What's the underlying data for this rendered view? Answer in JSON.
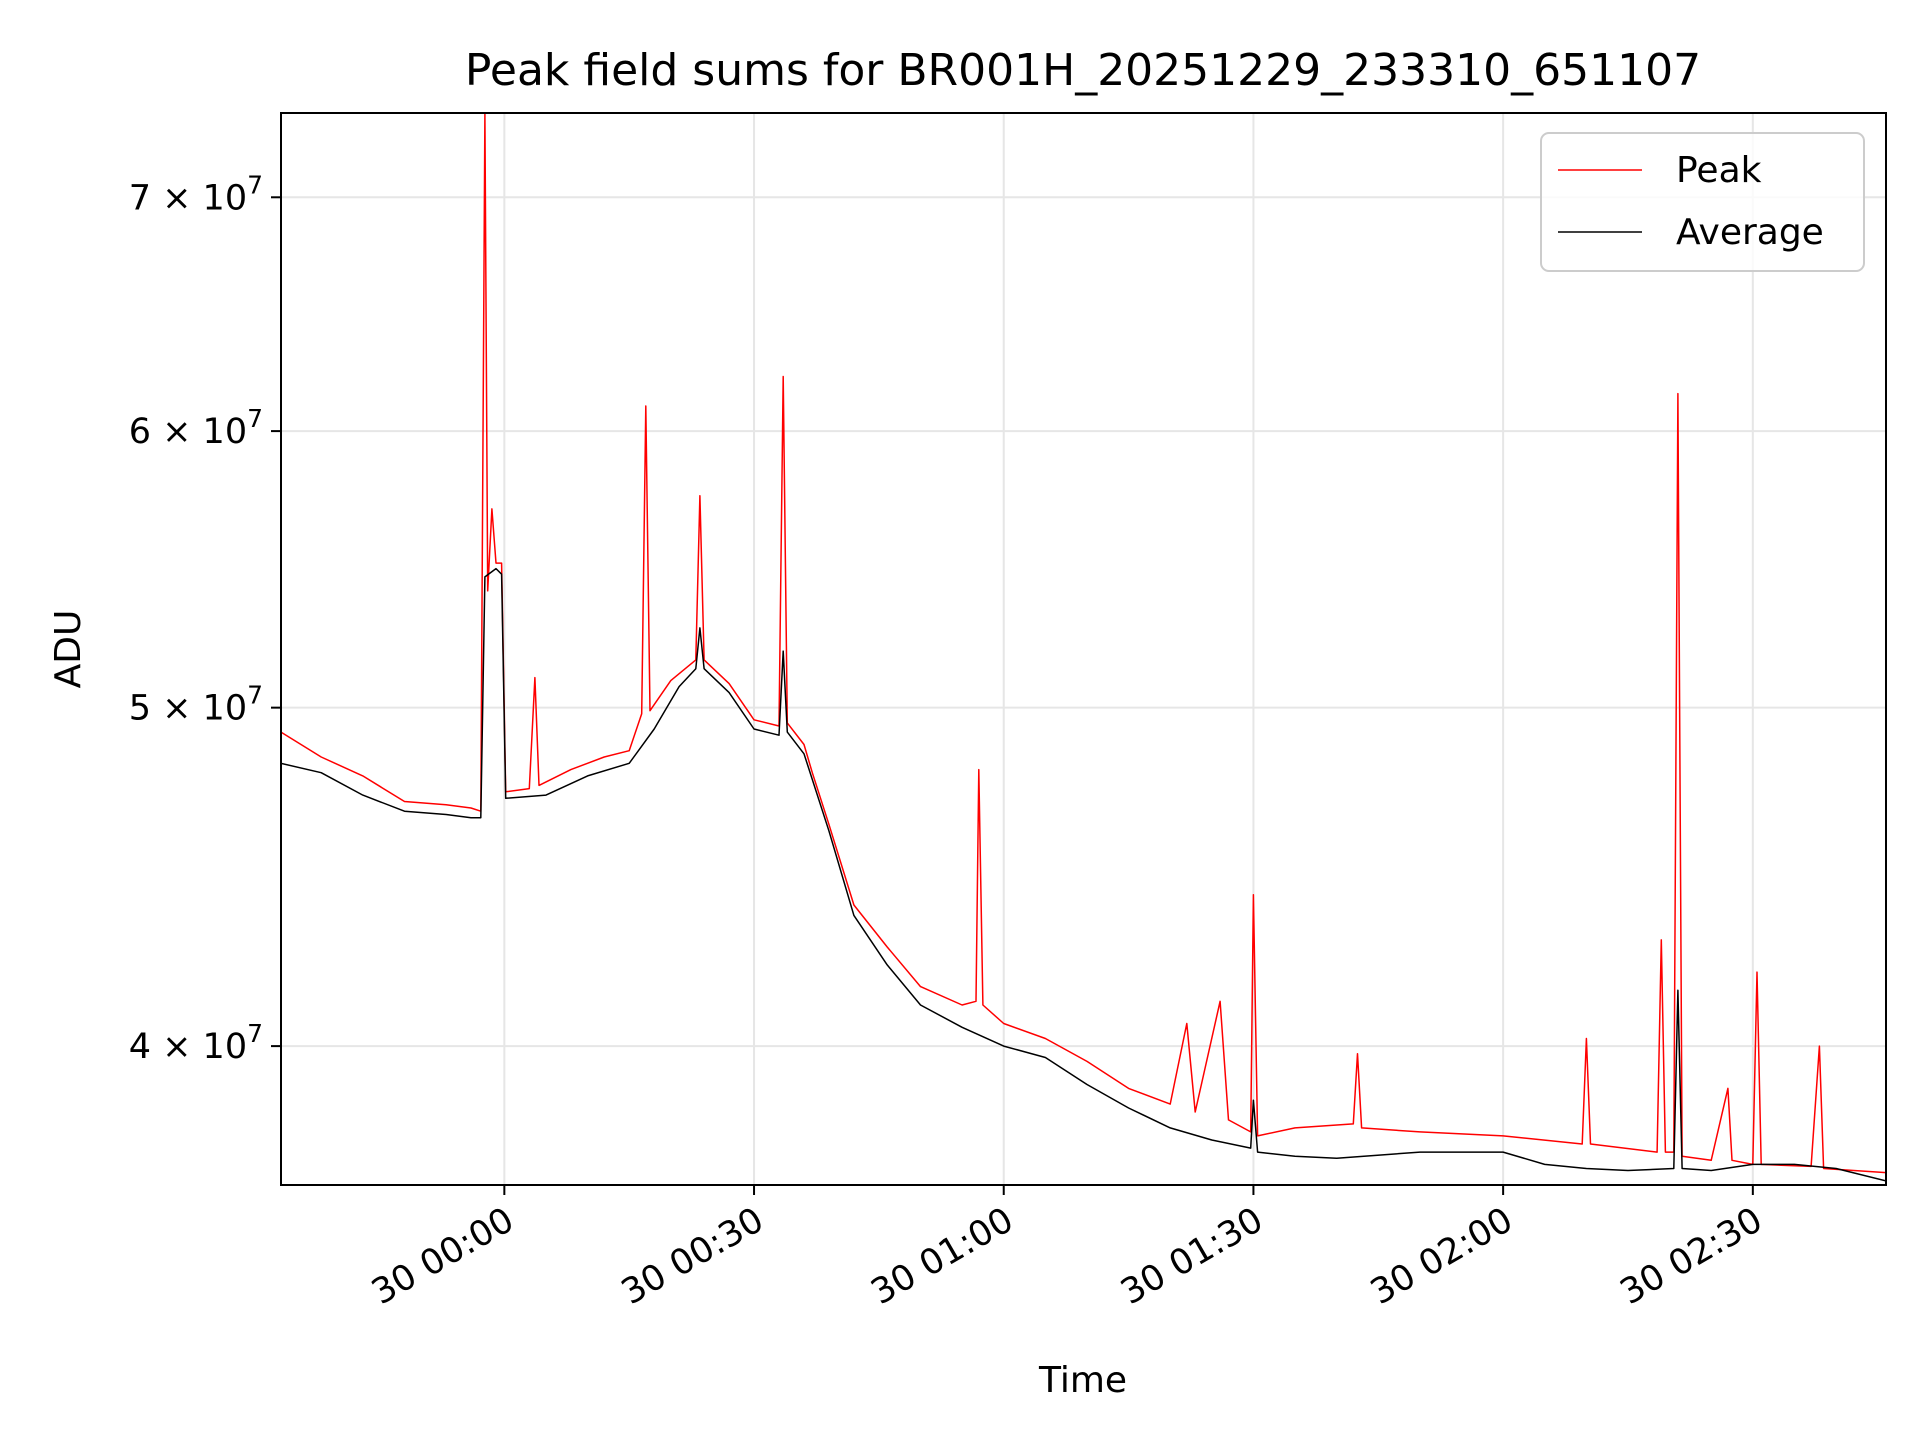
{
  "chart_data": {
    "type": "line",
    "title": "Peak field sums for BR001H_20251229_233310_651107",
    "xlabel": "Time",
    "ylabel": "ADU",
    "x_range": [
      "2025-12-29T23:33:10",
      "2025-12-30T02:46:00"
    ],
    "ylim": [
      36500000,
      74000000
    ],
    "y_scale": "log",
    "grid": true,
    "legend_position": "top-right",
    "x_ticks": [
      {
        "t": "2025-12-30T00:00:00",
        "label": "30 00:00"
      },
      {
        "t": "2025-12-30T00:30:00",
        "label": "30 00:30"
      },
      {
        "t": "2025-12-30T01:00:00",
        "label": "30 01:00"
      },
      {
        "t": "2025-12-30T01:30:00",
        "label": "30 01:30"
      },
      {
        "t": "2025-12-30T02:00:00",
        "label": "30 02:00"
      },
      {
        "t": "2025-12-30T02:30:00",
        "label": "30 02:30"
      }
    ],
    "y_ticks": [
      {
        "value": 40000000,
        "mantissa": "4",
        "exponent": "7"
      },
      {
        "value": 50000000,
        "mantissa": "5",
        "exponent": "7"
      },
      {
        "value": 60000000,
        "mantissa": "6",
        "exponent": "7"
      },
      {
        "value": 70000000,
        "mantissa": "7",
        "exponent": "7"
      }
    ],
    "tick_times_symbol": "×",
    "tick_base": "10",
    "series": [
      {
        "name": "Peak",
        "color": "#ff0000",
        "points": [
          [
            "2025-12-29T23:33:10",
            49200000
          ],
          [
            "2025-12-29T23:38:00",
            48400000
          ],
          [
            "2025-12-29T23:43:00",
            47800000
          ],
          [
            "2025-12-29T23:48:00",
            47000000
          ],
          [
            "2025-12-29T23:53:00",
            46900000
          ],
          [
            "2025-12-29T23:56:00",
            46800000
          ],
          [
            "2025-12-29T23:57:10",
            46700000
          ],
          [
            "2025-12-29T23:57:40",
            74000000
          ],
          [
            "2025-12-29T23:58:00",
            54000000
          ],
          [
            "2025-12-29T23:58:30",
            57000000
          ],
          [
            "2025-12-29T23:59:00",
            55000000
          ],
          [
            "2025-12-29T23:59:40",
            55000000
          ],
          [
            "2025-12-30T00:00:10",
            47300000
          ],
          [
            "2025-12-30T00:03:00",
            47400000
          ],
          [
            "2025-12-30T00:03:40",
            51000000
          ],
          [
            "2025-12-30T00:04:10",
            47500000
          ],
          [
            "2025-12-30T00:08:00",
            48000000
          ],
          [
            "2025-12-30T00:12:00",
            48400000
          ],
          [
            "2025-12-30T00:15:00",
            48600000
          ],
          [
            "2025-12-30T00:16:30",
            49800000
          ],
          [
            "2025-12-30T00:17:00",
            61000000
          ],
          [
            "2025-12-30T00:17:30",
            49900000
          ],
          [
            "2025-12-30T00:20:00",
            50900000
          ],
          [
            "2025-12-30T00:23:00",
            51600000
          ],
          [
            "2025-12-30T00:23:30",
            57500000
          ],
          [
            "2025-12-30T00:24:00",
            51600000
          ],
          [
            "2025-12-30T00:27:00",
            50800000
          ],
          [
            "2025-12-30T00:30:00",
            49600000
          ],
          [
            "2025-12-30T00:33:00",
            49400000
          ],
          [
            "2025-12-30T00:33:30",
            62200000
          ],
          [
            "2025-12-30T00:34:00",
            49500000
          ],
          [
            "2025-12-30T00:36:00",
            48800000
          ],
          [
            "2025-12-30T00:37:00",
            47900000
          ],
          [
            "2025-12-30T00:39:00",
            46300000
          ],
          [
            "2025-12-30T00:42:00",
            43900000
          ],
          [
            "2025-12-30T00:46:00",
            42700000
          ],
          [
            "2025-12-30T00:50:00",
            41600000
          ],
          [
            "2025-12-30T00:55:00",
            41100000
          ],
          [
            "2025-12-30T00:56:40",
            41200000
          ],
          [
            "2025-12-30T00:57:00",
            48000000
          ],
          [
            "2025-12-30T00:57:30",
            41100000
          ],
          [
            "2025-12-30T01:00:00",
            40600000
          ],
          [
            "2025-12-30T01:05:00",
            40200000
          ],
          [
            "2025-12-30T01:10:00",
            39600000
          ],
          [
            "2025-12-30T01:15:00",
            38900000
          ],
          [
            "2025-12-30T01:20:00",
            38500000
          ],
          [
            "2025-12-30T01:22:00",
            40600000
          ],
          [
            "2025-12-30T01:23:00",
            38300000
          ],
          [
            "2025-12-30T01:26:00",
            41200000
          ],
          [
            "2025-12-30T01:27:00",
            38100000
          ],
          [
            "2025-12-30T01:29:40",
            37800000
          ],
          [
            "2025-12-30T01:30:00",
            44200000
          ],
          [
            "2025-12-30T01:30:30",
            37700000
          ],
          [
            "2025-12-30T01:35:00",
            37900000
          ],
          [
            "2025-12-30T01:42:00",
            38000000
          ],
          [
            "2025-12-30T01:42:30",
            39800000
          ],
          [
            "2025-12-30T01:43:00",
            37900000
          ],
          [
            "2025-12-30T01:50:00",
            37800000
          ],
          [
            "2025-12-30T02:00:00",
            37700000
          ],
          [
            "2025-12-30T02:09:30",
            37500000
          ],
          [
            "2025-12-30T02:10:00",
            40200000
          ],
          [
            "2025-12-30T02:10:30",
            37500000
          ],
          [
            "2025-12-30T02:18:30",
            37300000
          ],
          [
            "2025-12-30T02:19:00",
            42900000
          ],
          [
            "2025-12-30T02:19:30",
            37300000
          ],
          [
            "2025-12-30T02:20:30",
            37300000
          ],
          [
            "2025-12-30T02:21:00",
            61500000
          ],
          [
            "2025-12-30T02:21:30",
            37200000
          ],
          [
            "2025-12-30T02:25:00",
            37100000
          ],
          [
            "2025-12-30T02:27:00",
            38900000
          ],
          [
            "2025-12-30T02:27:30",
            37100000
          ],
          [
            "2025-12-30T02:30:00",
            37000000
          ],
          [
            "2025-12-30T02:30:30",
            42000000
          ],
          [
            "2025-12-30T02:31:00",
            37000000
          ],
          [
            "2025-12-30T02:37:00",
            36950000
          ],
          [
            "2025-12-30T02:38:00",
            40000000
          ],
          [
            "2025-12-30T02:38:30",
            36900000
          ],
          [
            "2025-12-30T02:46:00",
            36800000
          ]
        ]
      },
      {
        "name": "Average",
        "color": "#000000",
        "points": [
          [
            "2025-12-29T23:33:10",
            48200000
          ],
          [
            "2025-12-29T23:38:00",
            47900000
          ],
          [
            "2025-12-29T23:43:00",
            47200000
          ],
          [
            "2025-12-29T23:48:00",
            46700000
          ],
          [
            "2025-12-29T23:53:00",
            46600000
          ],
          [
            "2025-12-29T23:56:00",
            46500000
          ],
          [
            "2025-12-29T23:57:10",
            46500000
          ],
          [
            "2025-12-29T23:57:40",
            54500000
          ],
          [
            "2025-12-29T23:59:00",
            54800000
          ],
          [
            "2025-12-29T23:59:40",
            54600000
          ],
          [
            "2025-12-30T00:00:10",
            47100000
          ],
          [
            "2025-12-30T00:05:00",
            47200000
          ],
          [
            "2025-12-30T00:10:00",
            47800000
          ],
          [
            "2025-12-30T00:15:00",
            48200000
          ],
          [
            "2025-12-30T00:18:00",
            49300000
          ],
          [
            "2025-12-30T00:21:00",
            50700000
          ],
          [
            "2025-12-30T00:23:00",
            51300000
          ],
          [
            "2025-12-30T00:23:30",
            52700000
          ],
          [
            "2025-12-30T00:24:00",
            51300000
          ],
          [
            "2025-12-30T00:27:00",
            50500000
          ],
          [
            "2025-12-30T00:30:00",
            49300000
          ],
          [
            "2025-12-30T00:33:00",
            49100000
          ],
          [
            "2025-12-30T00:33:30",
            51900000
          ],
          [
            "2025-12-30T00:34:00",
            49200000
          ],
          [
            "2025-12-30T00:36:00",
            48500000
          ],
          [
            "2025-12-30T00:39:00",
            46100000
          ],
          [
            "2025-12-30T00:42:00",
            43600000
          ],
          [
            "2025-12-30T00:46:00",
            42200000
          ],
          [
            "2025-12-30T00:50:00",
            41100000
          ],
          [
            "2025-12-30T00:55:00",
            40500000
          ],
          [
            "2025-12-30T01:00:00",
            40000000
          ],
          [
            "2025-12-30T01:05:00",
            39700000
          ],
          [
            "2025-12-30T01:10:00",
            39000000
          ],
          [
            "2025-12-30T01:15:00",
            38400000
          ],
          [
            "2025-12-30T01:20:00",
            37900000
          ],
          [
            "2025-12-30T01:25:00",
            37600000
          ],
          [
            "2025-12-30T01:29:40",
            37400000
          ],
          [
            "2025-12-30T01:30:00",
            38600000
          ],
          [
            "2025-12-30T01:30:30",
            37300000
          ],
          [
            "2025-12-30T01:35:00",
            37200000
          ],
          [
            "2025-12-30T01:40:00",
            37150000
          ],
          [
            "2025-12-30T01:50:00",
            37300000
          ],
          [
            "2025-12-30T02:00:00",
            37300000
          ],
          [
            "2025-12-30T02:05:00",
            37000000
          ],
          [
            "2025-12-30T02:10:00",
            36900000
          ],
          [
            "2025-12-30T02:15:00",
            36850000
          ],
          [
            "2025-12-30T02:20:30",
            36900000
          ],
          [
            "2025-12-30T02:21:00",
            41500000
          ],
          [
            "2025-12-30T02:21:30",
            36900000
          ],
          [
            "2025-12-30T02:25:00",
            36850000
          ],
          [
            "2025-12-30T02:30:00",
            37000000
          ],
          [
            "2025-12-30T02:35:00",
            37000000
          ],
          [
            "2025-12-30T02:40:00",
            36900000
          ],
          [
            "2025-12-30T02:46:00",
            36600000
          ]
        ]
      }
    ]
  }
}
